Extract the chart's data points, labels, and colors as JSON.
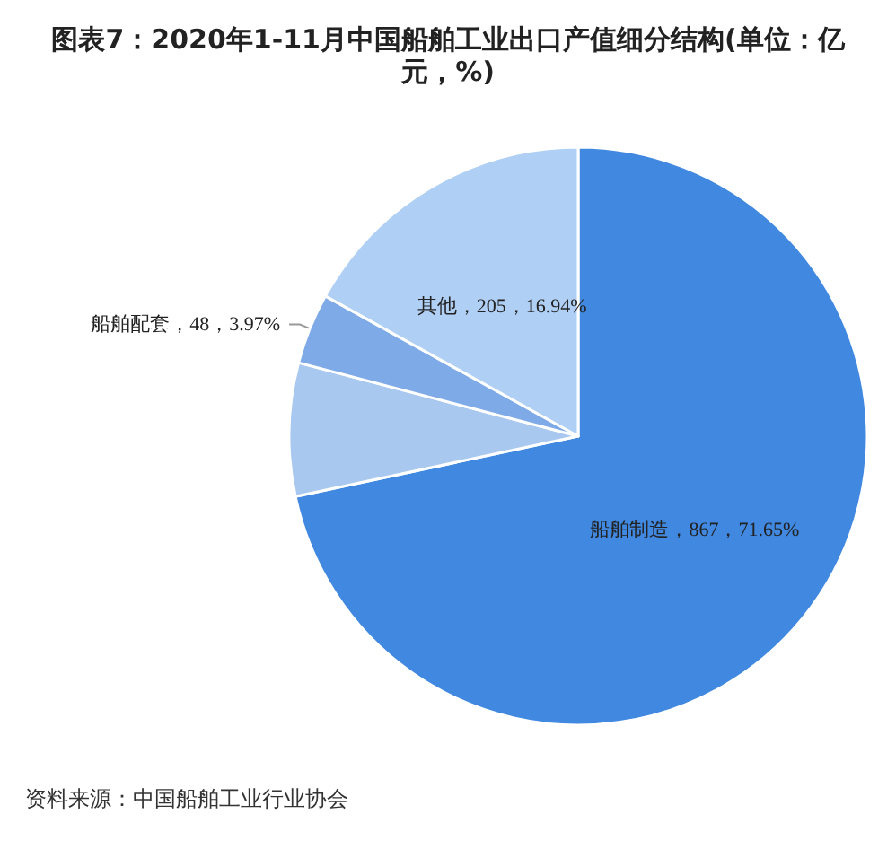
{
  "chart_data": {
    "type": "pie",
    "title": "图表7：2020年1-11月中国船舶工业出口产值细分结构(单位：亿元，%)",
    "categories": [
      "船舶制造",
      null,
      "船舶配套",
      "其他"
    ],
    "values": [
      867,
      90,
      48,
      205
    ],
    "colors": [
      "#4088e0",
      "#a9c8f0",
      "#7eaae8",
      "#b0cff4"
    ],
    "value_labels": [
      "，867，71.65%",
      null,
      "，48，3.97%",
      "，205，16.94%"
    ],
    "annotations": [
      "资料来源：中国船舶工业行业协会"
    ]
  }
}
